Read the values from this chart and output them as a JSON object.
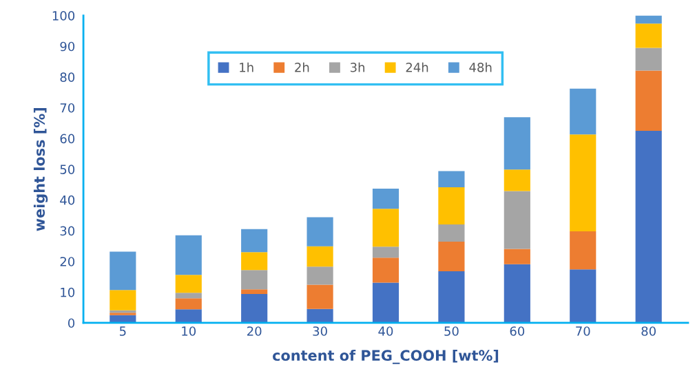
{
  "chart_data": {
    "type": "bar",
    "stacked": true,
    "xlabel": "content of PEG_COOH [wt%]",
    "ylabel": "weight loss [%]",
    "categories": [
      "5",
      "10",
      "20",
      "30",
      "40",
      "50",
      "60",
      "70",
      "80"
    ],
    "series": [
      {
        "name": "1h",
        "color": "#4472c4",
        "values": [
          2.5,
          4.4,
          9.4,
          4.5,
          13.1,
          16.8,
          19.1,
          17.4,
          62.5
        ]
      },
      {
        "name": "2h",
        "color": "#ed7d31",
        "values": [
          0.8,
          3.6,
          1.5,
          7.9,
          8.1,
          9.6,
          5.0,
          12.4,
          19.6
        ]
      },
      {
        "name": "3h",
        "color": "#a5a5a5",
        "values": [
          0.8,
          1.8,
          6.3,
          5.9,
          3.6,
          5.6,
          18.8,
          0,
          7.4
        ]
      },
      {
        "name": "24h",
        "color": "#ffc000",
        "values": [
          6.6,
          5.8,
          5.8,
          6.6,
          12.3,
          12.1,
          7.0,
          31.5,
          7.9
        ]
      },
      {
        "name": "48h",
        "color": "#5b9bd5",
        "values": [
          12.5,
          12.9,
          7.5,
          9.5,
          6.6,
          5.3,
          17.0,
          14.9,
          2.6
        ]
      }
    ],
    "ylim": [
      0,
      100
    ],
    "yticks": [
      0,
      10,
      20,
      30,
      40,
      50,
      60,
      70,
      80,
      90,
      100
    ],
    "grid": false,
    "legend": "top"
  }
}
